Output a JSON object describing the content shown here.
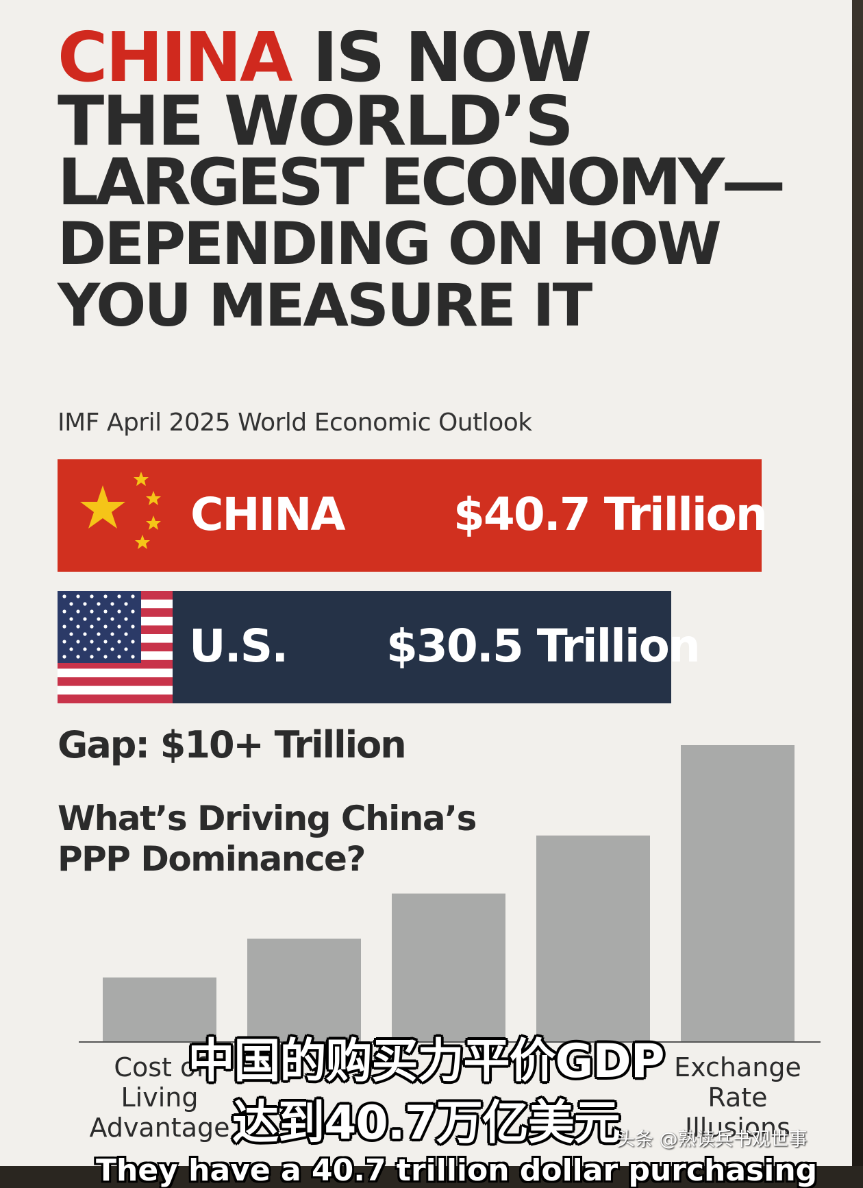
{
  "headline": {
    "line1_red": "CHINA",
    "line1_rest": " IS NOW",
    "line2": "THE WORLD’S",
    "line3": "LARGEST ECONOMY—",
    "line4": "DEPENDING ON HOW",
    "line5": "YOU MEASURE IT"
  },
  "source": "IMF April 2025 World Economic Outlook",
  "comparison": [
    {
      "country": "CHINA",
      "value_label": "$40.7 Trillion",
      "value": 40.7,
      "color": "#d1301f",
      "flag_icon": "china-flag-icon"
    },
    {
      "country": "U.S.",
      "value_label": "$30.5 Trillion",
      "value": 30.5,
      "color": "#253247",
      "flag_icon": "us-flag-icon"
    }
  ],
  "gap": "Gap: $10+ Trillion",
  "section_question": "What’s Driving China’s PPP Dominance?",
  "chart_data": {
    "type": "bar",
    "categories": [
      "Cost of Living Advantage",
      "",
      "",
      "",
      "Exchange Rate Illusions"
    ],
    "category_lines": [
      [
        "Cost of",
        "Living",
        "Advantage"
      ],
      [],
      [],
      [],
      [
        "Exchange",
        "Rate",
        "Illusions"
      ]
    ],
    "values": [
      1,
      1.6,
      2.3,
      3.2,
      4.6
    ],
    "ylim": [
      0,
      4.6
    ],
    "bar_color": "#a9aaa9",
    "axis_color": "#555555",
    "grid": false
  },
  "overlay": {
    "subtitle_cn_line1": "中国的购买力平价GDP",
    "subtitle_cn_line2": "达到40.7万亿美元",
    "watermark": "头条 @熟读兵书观世事",
    "caption_en": "They have a 40.7 trillion dollar purchasing"
  }
}
